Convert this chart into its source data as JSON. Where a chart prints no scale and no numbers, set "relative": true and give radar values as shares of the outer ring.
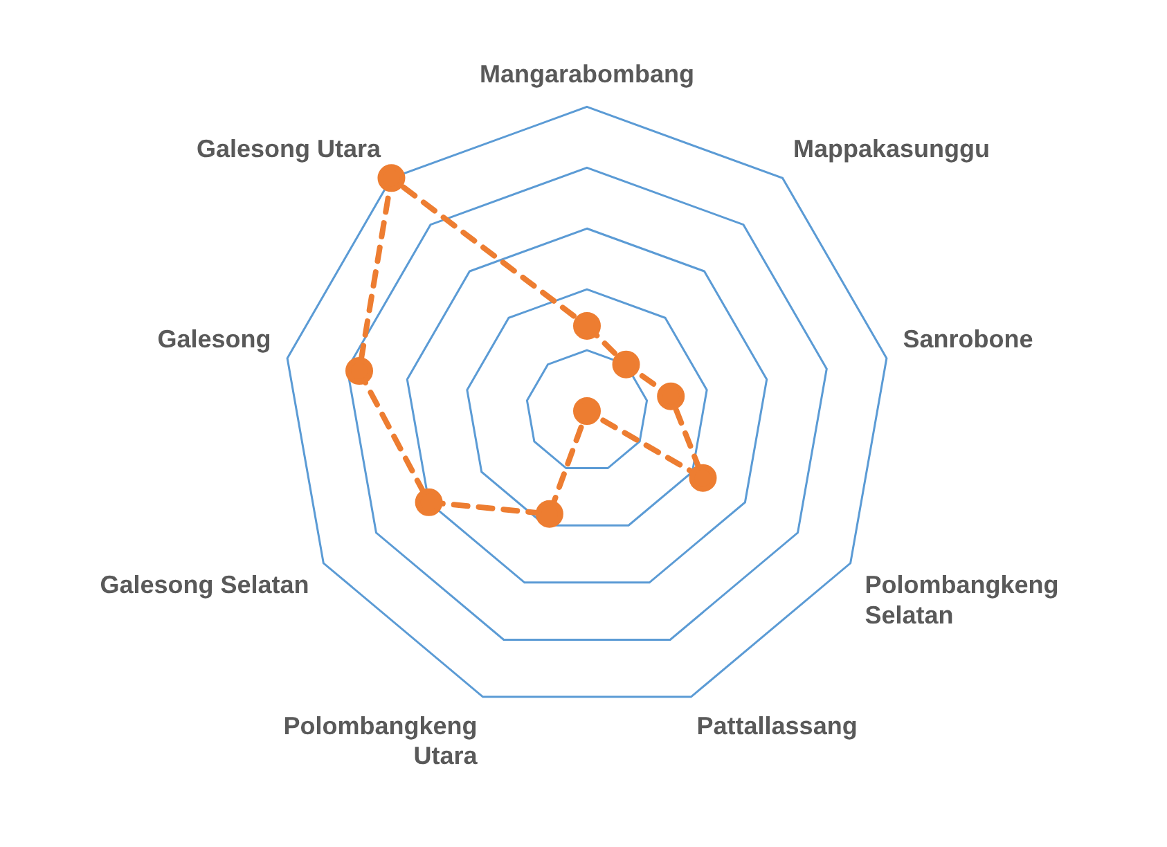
{
  "chart_data": {
    "type": "radar",
    "relative": true,
    "categories": [
      "Mangarabombang",
      "Mappakasunggu",
      "Sanrobone",
      "Polombangkeng Selatan",
      "Pattallassang",
      "Polombangkeng Utara",
      "Galesong Selatan",
      "Galesong",
      "Galesong Utara"
    ],
    "series": [
      {
        "color": "#ed7d31",
        "values": [
          0.28,
          0.2,
          0.28,
          0.44,
          0,
          0.36,
          0.6,
          0.76,
          1.0
        ],
        "marker": "circle",
        "line_style": "dashed"
      }
    ],
    "legend": false,
    "grid": true
  }
}
